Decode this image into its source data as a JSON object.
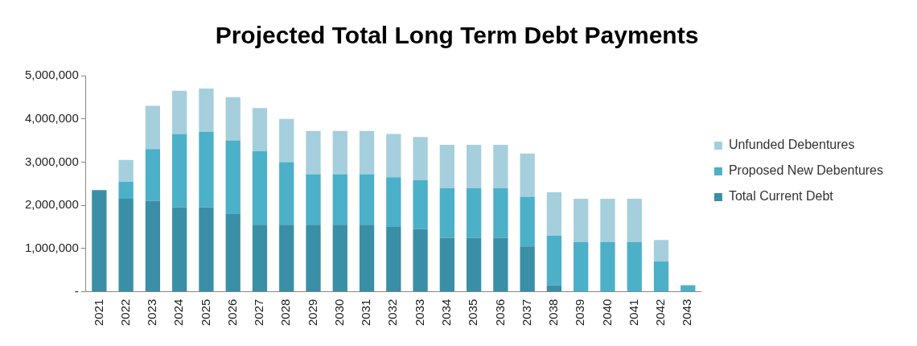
{
  "chart_data": {
    "type": "bar",
    "title": "Projected Total Long Term Debt Payments",
    "stacked": true,
    "legend": "right",
    "grid": false,
    "categories": [
      "2021",
      "2022",
      "2023",
      "2024",
      "2025",
      "2026",
      "2027",
      "2028",
      "2029",
      "2030",
      "2031",
      "2032",
      "2033",
      "2034",
      "2035",
      "2036",
      "2037",
      "2038",
      "2039",
      "2040",
      "2041",
      "2042",
      "2043"
    ],
    "ylim": [
      0,
      5000000
    ],
    "yticks": [
      {
        "value": 0,
        "label": "-"
      },
      {
        "value": 1000000,
        "label": "1,000,000"
      },
      {
        "value": 2000000,
        "label": "2,000,000"
      },
      {
        "value": 3000000,
        "label": "3,000,000"
      },
      {
        "value": 4000000,
        "label": "4,000,000"
      },
      {
        "value": 5000000,
        "label": "5,000,000"
      }
    ],
    "series": [
      {
        "name": "Total Current Debt",
        "color": "#3a8fa6",
        "values": [
          2350000,
          2150000,
          2100000,
          1950000,
          1950000,
          1800000,
          1550000,
          1550000,
          1550000,
          1550000,
          1550000,
          1500000,
          1450000,
          1250000,
          1250000,
          1250000,
          1050000,
          150000,
          0,
          0,
          0,
          0,
          0
        ]
      },
      {
        "name": "Proposed New Debentures",
        "color": "#4bb0c8",
        "values": [
          0,
          400000,
          1200000,
          1700000,
          1750000,
          1700000,
          1700000,
          1450000,
          1170000,
          1170000,
          1170000,
          1150000,
          1130000,
          1150000,
          1150000,
          1150000,
          1150000,
          1150000,
          1150000,
          1150000,
          1150000,
          700000,
          150000
        ]
      },
      {
        "name": "Unfunded Debentures",
        "color": "#a6cfdd",
        "values": [
          0,
          500000,
          1000000,
          1000000,
          1000000,
          1000000,
          1000000,
          1000000,
          1000000,
          1000000,
          1000000,
          1000000,
          1000000,
          1000000,
          1000000,
          1000000,
          1000000,
          1000000,
          1000000,
          1000000,
          1000000,
          500000,
          0
        ]
      }
    ]
  }
}
